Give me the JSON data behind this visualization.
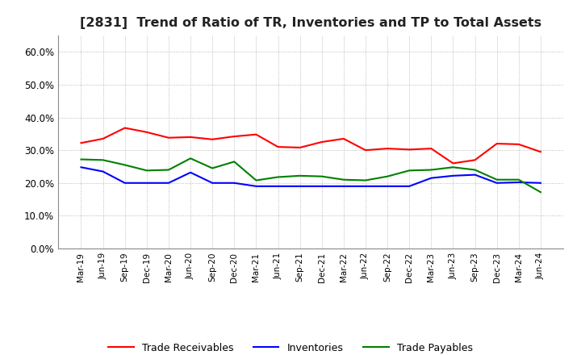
{
  "title": "[2831]  Trend of Ratio of TR, Inventories and TP to Total Assets",
  "title_fontsize": 11.5,
  "ylim": [
    0.0,
    0.65
  ],
  "yticks": [
    0.0,
    0.1,
    0.2,
    0.3,
    0.4,
    0.5,
    0.6
  ],
  "x_labels": [
    "Mar-19",
    "Jun-19",
    "Sep-19",
    "Dec-19",
    "Mar-20",
    "Jun-20",
    "Sep-20",
    "Dec-20",
    "Mar-21",
    "Jun-21",
    "Sep-21",
    "Dec-21",
    "Mar-22",
    "Jun-22",
    "Sep-22",
    "Dec-22",
    "Mar-23",
    "Jun-23",
    "Sep-23",
    "Dec-23",
    "Mar-24",
    "Jun-24"
  ],
  "trade_receivables": [
    0.322,
    0.335,
    0.368,
    0.355,
    0.338,
    0.34,
    0.333,
    0.342,
    0.348,
    0.31,
    0.308,
    0.325,
    0.335,
    0.3,
    0.305,
    0.302,
    0.305,
    0.26,
    0.27,
    0.32,
    0.318,
    0.295
  ],
  "inventories": [
    0.248,
    0.235,
    0.2,
    0.2,
    0.2,
    0.232,
    0.2,
    0.2,
    0.19,
    0.19,
    0.19,
    0.19,
    0.19,
    0.19,
    0.19,
    0.19,
    0.215,
    0.222,
    0.225,
    0.2,
    0.202,
    0.2
  ],
  "trade_payables": [
    0.272,
    0.27,
    0.255,
    0.238,
    0.24,
    0.275,
    0.245,
    0.265,
    0.208,
    0.218,
    0.222,
    0.22,
    0.21,
    0.208,
    0.22,
    0.238,
    0.24,
    0.248,
    0.24,
    0.21,
    0.21,
    0.172
  ],
  "tr_color": "#FF0000",
  "inv_color": "#0000FF",
  "tp_color": "#008000",
  "background_color": "#FFFFFF",
  "grid_color": "#AAAAAA",
  "legend_labels": [
    "Trade Receivables",
    "Inventories",
    "Trade Payables"
  ]
}
